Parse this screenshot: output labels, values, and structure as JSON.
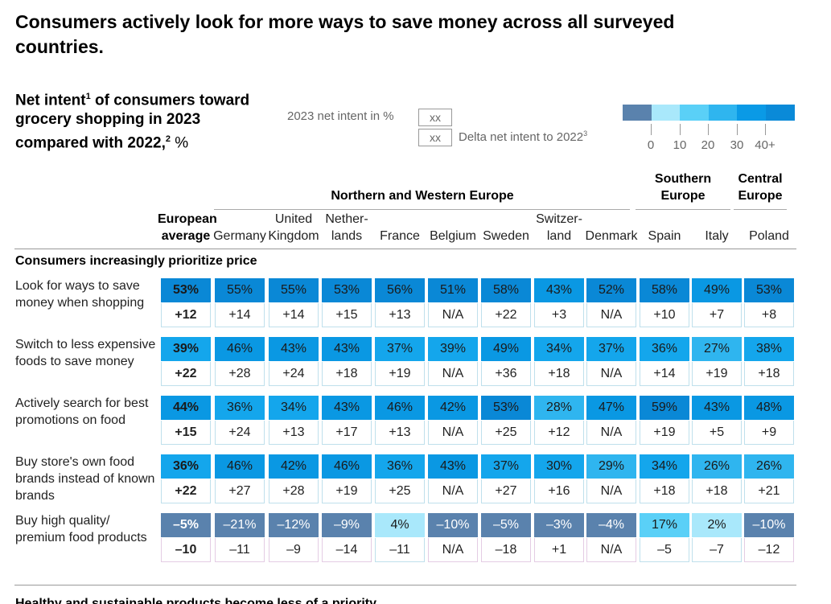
{
  "headline": "Consumers actively look for more ways to save money across all surveyed countries.",
  "chart_data": {
    "type": "heatmap",
    "title": "Consumers actively look for more ways to save money across all surveyed countries.",
    "subtitle_main": "Net intent",
    "subtitle_sup1": "1",
    "subtitle_mid": " of consumers toward grocery shopping in 2023 compared with 2022,",
    "subtitle_sup2": "2",
    "subtitle_unit": " %",
    "legend": {
      "net_intent_label": "2023 net intent in %",
      "delta_label": "Delta net intent to 2022",
      "delta_sup": "3",
      "placeholder": "xx",
      "scale_labels": [
        "0",
        "10",
        "20",
        "30",
        "40+"
      ],
      "scale_colors": [
        "#5a82ad",
        "#a9e8fb",
        "#5ad0f7",
        "#2fb5ef",
        "#0a9ae6",
        "#0a8ad8"
      ]
    },
    "regions": [
      {
        "name": "Northern and Western Europe"
      },
      {
        "name": "Southern Europe"
      },
      {
        "name": "Central Europe"
      }
    ],
    "columns": [
      {
        "label1": "European",
        "label2": "average"
      },
      {
        "label1": "",
        "label2": "Germany"
      },
      {
        "label1": "United",
        "label2": "Kingdom"
      },
      {
        "label1": "Nether-",
        "label2": "lands"
      },
      {
        "label1": "",
        "label2": "France"
      },
      {
        "label1": "",
        "label2": "Belgium"
      },
      {
        "label1": "",
        "label2": "Sweden"
      },
      {
        "label1": "Switzer-",
        "label2": "land"
      },
      {
        "label1": "",
        "label2": "Denmark"
      },
      {
        "label1": "",
        "label2": "Spain"
      },
      {
        "label1": "",
        "label2": "Italy"
      },
      {
        "label1": "",
        "label2": "Poland"
      }
    ],
    "section": "Consumers increasingly prioritize price",
    "rows": [
      {
        "label": "Look for ways to save money when shopping",
        "values": [
          53,
          55,
          55,
          53,
          56,
          51,
          58,
          43,
          52,
          58,
          49,
          53
        ],
        "display": [
          "53%",
          "55%",
          "55%",
          "53%",
          "56%",
          "51%",
          "58%",
          "43%",
          "52%",
          "58%",
          "49%",
          "53%"
        ],
        "delta": [
          "+12",
          "+14",
          "+14",
          "+15",
          "+13",
          "N/A",
          "+22",
          "+3",
          "N/A",
          "+10",
          "+7",
          "+8"
        ]
      },
      {
        "label": "Switch to less expensive foods to save money",
        "values": [
          39,
          46,
          43,
          43,
          37,
          39,
          49,
          34,
          37,
          36,
          27,
          38
        ],
        "display": [
          "39%",
          "46%",
          "43%",
          "43%",
          "37%",
          "39%",
          "49%",
          "34%",
          "37%",
          "36%",
          "27%",
          "38%"
        ],
        "delta": [
          "+22",
          "+28",
          "+24",
          "+18",
          "+19",
          "N/A",
          "+36",
          "+18",
          "N/A",
          "+14",
          "+19",
          "+18"
        ]
      },
      {
        "label": "Actively search for best promotions on food",
        "values": [
          44,
          36,
          34,
          43,
          46,
          42,
          53,
          28,
          47,
          59,
          43,
          48
        ],
        "display": [
          "44%",
          "36%",
          "34%",
          "43%",
          "46%",
          "42%",
          "53%",
          "28%",
          "47%",
          "59%",
          "43%",
          "48%"
        ],
        "delta": [
          "+15",
          "+24",
          "+13",
          "+17",
          "+13",
          "N/A",
          "+25",
          "+12",
          "N/A",
          "+19",
          "+5",
          "+9"
        ]
      },
      {
        "label": "Buy store's own food brands instead of known brands",
        "values": [
          36,
          46,
          42,
          46,
          36,
          43,
          37,
          30,
          29,
          34,
          26,
          26
        ],
        "display": [
          "36%",
          "46%",
          "42%",
          "46%",
          "36%",
          "43%",
          "37%",
          "30%",
          "29%",
          "34%",
          "26%",
          "26%"
        ],
        "delta": [
          "+22",
          "+27",
          "+28",
          "+19",
          "+25",
          "N/A",
          "+27",
          "+16",
          "N/A",
          "+18",
          "+18",
          "+21"
        ]
      },
      {
        "label": "Buy high quality/ premium food products",
        "values": [
          -5,
          -21,
          -12,
          -9,
          4,
          -10,
          -5,
          -3,
          -4,
          17,
          2,
          -10
        ],
        "display": [
          "–5%",
          "–21%",
          "–12%",
          "–9%",
          "4%",
          "–10%",
          "–5%",
          "–3%",
          "–4%",
          "17%",
          "2%",
          "–10%"
        ],
        "delta": [
          "–10",
          "–11",
          "–9",
          "–14",
          "–11",
          "N/A",
          "–18",
          "+1",
          "N/A",
          "–5",
          "–7",
          "–12"
        ]
      }
    ],
    "next_section": "Healthy and sustainable products become less of a priority"
  }
}
